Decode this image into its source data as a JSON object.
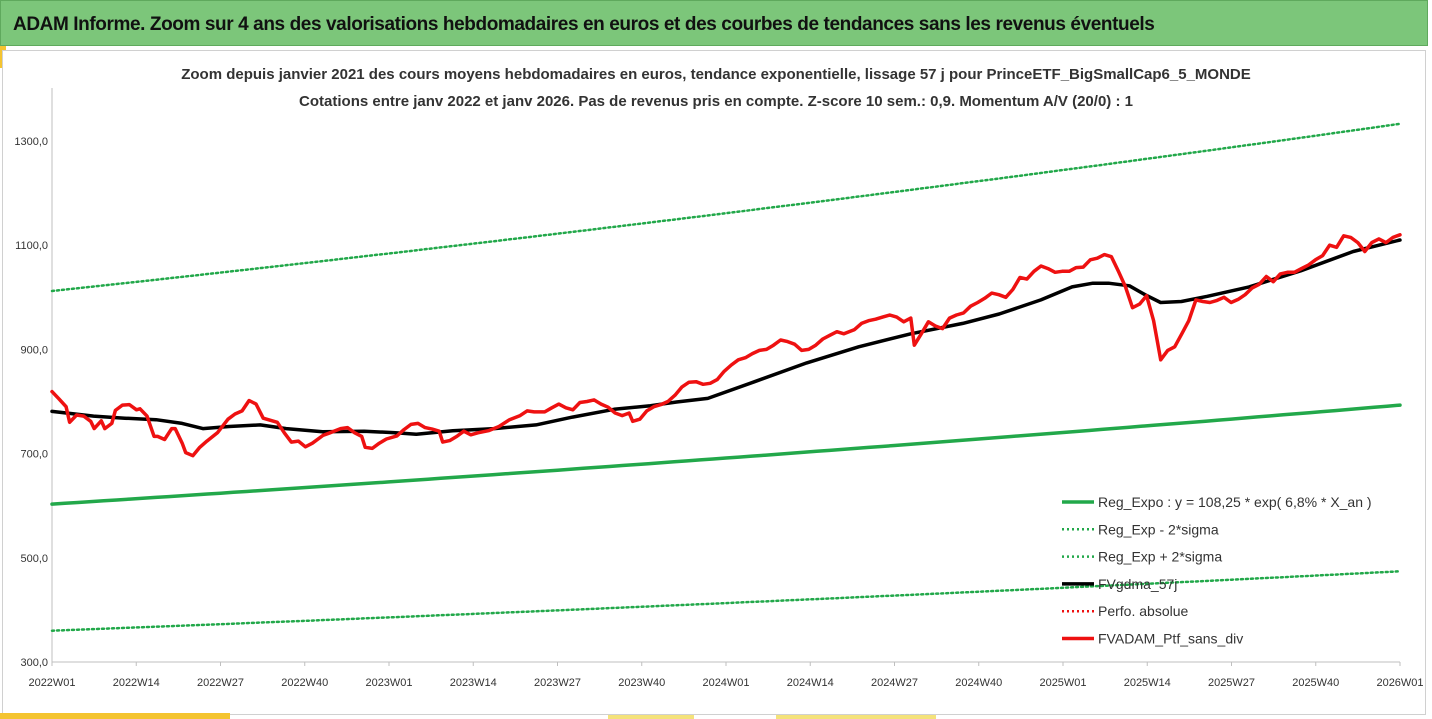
{
  "header": {
    "title": "ADAM Informe. Zoom sur 4 ans des valorisations hebdomadaires en euros et des courbes de tendances sans les revenus éventuels"
  },
  "colors": {
    "header_bg": "#7cc67a",
    "accent": "#f4c430",
    "regression": "#22a84a",
    "smoothed": "#000000",
    "portfolio": "#ee1111"
  },
  "chart_data": {
    "type": "line",
    "title_line1": "Zoom depuis janvier 2021 des cours moyens hebdomadaires  en euros, tendance exponentielle, lissage 57 j pour PrinceETF_BigSmallCap6_5_MONDE",
    "title_line2": "Cotations entre janv 2022 et janv 2026. Pas de revenus pris en compte. Z-score 10 sem.: 0,9. Momentum A/V (20/0) : 1",
    "x_tick_labels": [
      "2022W01",
      "2022W14",
      "2022W27",
      "2022W40",
      "2023W01",
      "2023W14",
      "2023W27",
      "2023W40",
      "2024W01",
      "2024W14",
      "2024W27",
      "2024W40",
      "2025W01",
      "2025W14",
      "2025W27",
      "2025W40",
      "2026W01"
    ],
    "y_tick_labels": [
      "300,0",
      "500,0",
      "700,0",
      "900,0",
      "1100,0",
      "1300,0"
    ],
    "y_ticks": [
      300,
      500,
      700,
      900,
      1100,
      1300
    ],
    "ylim": [
      300,
      1400
    ],
    "x_unit_note": "",
    "week_count": 209,
    "grid": false,
    "legend_position": "bottom-right",
    "series": [
      {
        "name": "Reg_Expo : y = 108,25 * exp( 6,8% *  X_an )",
        "style": "solid-green",
        "start": 603,
        "end": 793
      },
      {
        "name": "Reg_Exp - 2*sigma",
        "style": "dotted-green",
        "start": 360,
        "end": 474
      },
      {
        "name": "Reg_Exp + 2*sigma",
        "style": "dotted-green",
        "start": 1012,
        "end": 1333
      },
      {
        "name": "FVgdma_57j",
        "style": "solid-black",
        "points": [
          [
            0,
            781
          ],
          [
            8,
            772
          ],
          [
            14,
            768
          ],
          [
            20,
            765
          ],
          [
            25,
            758
          ],
          [
            29,
            748
          ],
          [
            34,
            752
          ],
          [
            40,
            755
          ],
          [
            45,
            748
          ],
          [
            52,
            742
          ],
          [
            60,
            743
          ],
          [
            66,
            740
          ],
          [
            70,
            737
          ],
          [
            77,
            744
          ],
          [
            85,
            748
          ],
          [
            93,
            755
          ],
          [
            100,
            770
          ],
          [
            108,
            785
          ],
          [
            115,
            792
          ],
          [
            120,
            799
          ],
          [
            126,
            806
          ],
          [
            135,
            838
          ],
          [
            145,
            874
          ],
          [
            155,
            905
          ],
          [
            165,
            930
          ],
          [
            175,
            950
          ],
          [
            182,
            968
          ],
          [
            190,
            995
          ],
          [
            196,
            1020
          ],
          [
            200,
            1027
          ],
          [
            203,
            1027
          ],
          [
            207,
            1022
          ],
          [
            210,
            1005
          ],
          [
            213,
            990
          ],
          [
            217,
            992
          ],
          [
            222,
            1002
          ],
          [
            230,
            1020
          ],
          [
            240,
            1051
          ],
          [
            250,
            1088
          ],
          [
            259,
            1110
          ]
        ]
      },
      {
        "name": "Perfo. absolue",
        "style": "dotted-red",
        "points": []
      },
      {
        "name": "FVADAM_Ptf_sans_div",
        "style": "solid-red",
        "points": [
          [
            0,
            819
          ],
          [
            2,
            805
          ],
          [
            4,
            790
          ],
          [
            5,
            760
          ],
          [
            7,
            774
          ],
          [
            9,
            772
          ],
          [
            11,
            762
          ],
          [
            12,
            748
          ],
          [
            14,
            763
          ],
          [
            15,
            748
          ],
          [
            17,
            758
          ],
          [
            18,
            783
          ],
          [
            20,
            793
          ],
          [
            22,
            794
          ],
          [
            24,
            784
          ],
          [
            25,
            786
          ],
          [
            27,
            772
          ],
          [
            29,
            733
          ],
          [
            30,
            733
          ],
          [
            32,
            727
          ],
          [
            34,
            748
          ],
          [
            35,
            748
          ],
          [
            37,
            720
          ],
          [
            38,
            702
          ],
          [
            40,
            696
          ],
          [
            42,
            712
          ],
          [
            44,
            724
          ],
          [
            47,
            740
          ],
          [
            50,
            766
          ],
          [
            52,
            776
          ],
          [
            54,
            782
          ],
          [
            56,
            802
          ],
          [
            58,
            795
          ],
          [
            60,
            768
          ],
          [
            64,
            760
          ],
          [
            66,
            740
          ],
          [
            68,
            722
          ],
          [
            70,
            724
          ],
          [
            72,
            713
          ],
          [
            74,
            720
          ],
          [
            77,
            735
          ],
          [
            79,
            740
          ],
          [
            82,
            748
          ],
          [
            84,
            750
          ],
          [
            86,
            740
          ],
          [
            88,
            733
          ],
          [
            89,
            712
          ],
          [
            91,
            710
          ],
          [
            93,
            720
          ],
          [
            95,
            728
          ],
          [
            98,
            734
          ],
          [
            100,
            746
          ],
          [
            102,
            756
          ],
          [
            104,
            758
          ],
          [
            106,
            750
          ],
          [
            108,
            747
          ],
          [
            110,
            743
          ],
          [
            111,
            722
          ],
          [
            113,
            725
          ],
          [
            115,
            733
          ],
          [
            117,
            743
          ],
          [
            119,
            736
          ],
          [
            121,
            740
          ],
          [
            124,
            744
          ],
          [
            127,
            752
          ],
          [
            130,
            765
          ],
          [
            133,
            773
          ],
          [
            135,
            782
          ],
          [
            137,
            780
          ],
          [
            140,
            780
          ],
          [
            142,
            788
          ],
          [
            144,
            795
          ],
          [
            146,
            788
          ],
          [
            148,
            784
          ],
          [
            150,
            798
          ],
          [
            152,
            800
          ],
          [
            154,
            803
          ],
          [
            156,
            795
          ],
          [
            158,
            789
          ],
          [
            160,
            778
          ],
          [
            162,
            773
          ],
          [
            164,
            778
          ],
          [
            165,
            762
          ],
          [
            167,
            766
          ],
          [
            169,
            782
          ],
          [
            171,
            790
          ],
          [
            173,
            794
          ],
          [
            175,
            800
          ],
          [
            177,
            812
          ],
          [
            179,
            828
          ],
          [
            181,
            837
          ],
          [
            183,
            838
          ],
          [
            185,
            833
          ],
          [
            187,
            835
          ],
          [
            189,
            842
          ],
          [
            191,
            858
          ],
          [
            193,
            870
          ],
          [
            195,
            880
          ],
          [
            197,
            884
          ],
          [
            199,
            892
          ],
          [
            201,
            898
          ],
          [
            203,
            900
          ],
          [
            205,
            908
          ],
          [
            207,
            918
          ],
          [
            209,
            915
          ],
          [
            211,
            910
          ],
          [
            213,
            898
          ],
          [
            215,
            900
          ],
          [
            217,
            908
          ],
          [
            219,
            920
          ],
          [
            221,
            927
          ],
          [
            223,
            934
          ],
          [
            225,
            930
          ],
          [
            228,
            938
          ],
          [
            230,
            950
          ],
          [
            232,
            955
          ],
          [
            234,
            958
          ],
          [
            236,
            962
          ],
          [
            238,
            966
          ],
          [
            240,
            962
          ],
          [
            242,
            953
          ],
          [
            244,
            960
          ],
          [
            245,
            908
          ],
          [
            247,
            930
          ],
          [
            249,
            953
          ],
          [
            251,
            945
          ],
          [
            253,
            940
          ],
          [
            255,
            960
          ],
          [
            257,
            966
          ],
          [
            259,
            970
          ],
          [
            261,
            983
          ],
          [
            263,
            990
          ],
          [
            265,
            998
          ],
          [
            267,
            1008
          ],
          [
            269,
            1005
          ],
          [
            271,
            1000
          ],
          [
            273,
            1015
          ],
          [
            275,
            1038
          ],
          [
            277,
            1035
          ],
          [
            279,
            1050
          ],
          [
            281,
            1060
          ],
          [
            283,
            1055
          ],
          [
            285,
            1048
          ],
          [
            287,
            1050
          ],
          [
            289,
            1050
          ],
          [
            291,
            1057
          ],
          [
            293,
            1058
          ],
          [
            295,
            1072
          ],
          [
            297,
            1075
          ],
          [
            299,
            1082
          ],
          [
            301,
            1078
          ],
          [
            303,
            1050
          ],
          [
            305,
            1020
          ],
          [
            307,
            980
          ],
          [
            309,
            987
          ],
          [
            311,
            1003
          ],
          [
            313,
            955
          ],
          [
            315,
            880
          ],
          [
            317,
            898
          ],
          [
            319,
            905
          ],
          [
            321,
            930
          ],
          [
            323,
            955
          ],
          [
            325,
            995
          ],
          [
            327,
            992
          ],
          [
            329,
            990
          ],
          [
            331,
            994
          ],
          [
            333,
            1000
          ],
          [
            335,
            990
          ],
          [
            337,
            996
          ],
          [
            339,
            1005
          ],
          [
            341,
            1018
          ],
          [
            343,
            1025
          ],
          [
            345,
            1040
          ],
          [
            347,
            1030
          ],
          [
            349,
            1045
          ],
          [
            351,
            1048
          ],
          [
            353,
            1048
          ],
          [
            355,
            1055
          ],
          [
            357,
            1062
          ],
          [
            359,
            1072
          ],
          [
            361,
            1080
          ],
          [
            363,
            1100
          ],
          [
            365,
            1096
          ],
          [
            367,
            1118
          ],
          [
            369,
            1115
          ],
          [
            371,
            1105
          ],
          [
            373,
            1088
          ],
          [
            375,
            1105
          ],
          [
            377,
            1112
          ],
          [
            379,
            1105
          ],
          [
            381,
            1115
          ],
          [
            383,
            1120
          ]
        ]
      }
    ]
  }
}
